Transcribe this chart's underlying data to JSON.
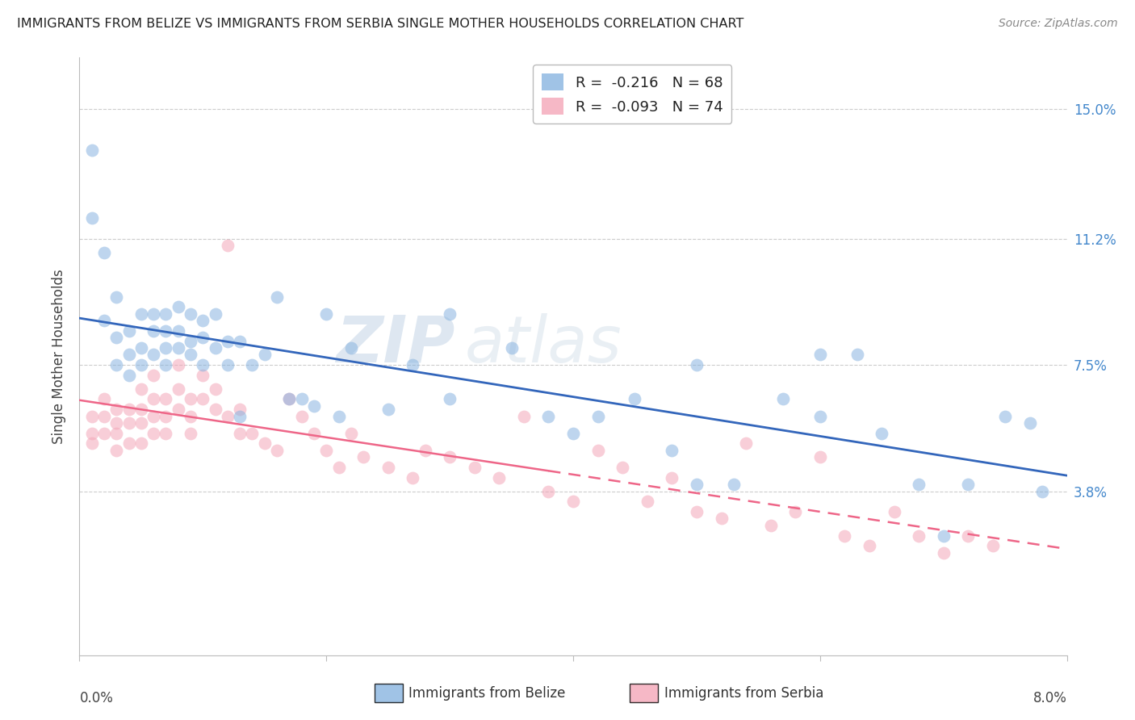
{
  "title": "IMMIGRANTS FROM BELIZE VS IMMIGRANTS FROM SERBIA SINGLE MOTHER HOUSEHOLDS CORRELATION CHART",
  "source": "Source: ZipAtlas.com",
  "ylabel": "Single Mother Households",
  "yticks": [
    "3.8%",
    "7.5%",
    "11.2%",
    "15.0%"
  ],
  "ytick_vals": [
    0.038,
    0.075,
    0.112,
    0.15
  ],
  "xlim": [
    0.0,
    0.08
  ],
  "ylim": [
    -0.01,
    0.165
  ],
  "legend_belize": "R =  -0.216   N = 68",
  "legend_serbia": "R =  -0.093   N = 74",
  "belize_color": "#89b4e0",
  "serbia_color": "#f4a6b8",
  "belize_line_color": "#3366BB",
  "serbia_line_color": "#EE6688",
  "watermark_zip": "ZIP",
  "watermark_atlas": "atlas",
  "belize_x": [
    0.001,
    0.001,
    0.002,
    0.002,
    0.003,
    0.003,
    0.003,
    0.004,
    0.004,
    0.004,
    0.005,
    0.005,
    0.005,
    0.006,
    0.006,
    0.006,
    0.007,
    0.007,
    0.007,
    0.007,
    0.008,
    0.008,
    0.008,
    0.009,
    0.009,
    0.009,
    0.01,
    0.01,
    0.01,
    0.011,
    0.011,
    0.012,
    0.012,
    0.013,
    0.013,
    0.014,
    0.015,
    0.016,
    0.017,
    0.018,
    0.019,
    0.02,
    0.021,
    0.022,
    0.025,
    0.027,
    0.03,
    0.035,
    0.038,
    0.04,
    0.042,
    0.048,
    0.05,
    0.053,
    0.057,
    0.06,
    0.063,
    0.065,
    0.068,
    0.07,
    0.072,
    0.075,
    0.077,
    0.078,
    0.03,
    0.045,
    0.05,
    0.06
  ],
  "belize_y": [
    0.138,
    0.118,
    0.108,
    0.088,
    0.095,
    0.083,
    0.075,
    0.085,
    0.078,
    0.072,
    0.09,
    0.08,
    0.075,
    0.09,
    0.085,
    0.078,
    0.09,
    0.085,
    0.08,
    0.075,
    0.092,
    0.085,
    0.08,
    0.09,
    0.082,
    0.078,
    0.088,
    0.083,
    0.075,
    0.09,
    0.08,
    0.082,
    0.075,
    0.082,
    0.06,
    0.075,
    0.078,
    0.095,
    0.065,
    0.065,
    0.063,
    0.09,
    0.06,
    0.08,
    0.062,
    0.075,
    0.065,
    0.08,
    0.06,
    0.055,
    0.06,
    0.05,
    0.04,
    0.04,
    0.065,
    0.06,
    0.078,
    0.055,
    0.04,
    0.025,
    0.04,
    0.06,
    0.058,
    0.038,
    0.09,
    0.065,
    0.075,
    0.078
  ],
  "serbia_x": [
    0.001,
    0.001,
    0.001,
    0.002,
    0.002,
    0.002,
    0.003,
    0.003,
    0.003,
    0.003,
    0.004,
    0.004,
    0.004,
    0.005,
    0.005,
    0.005,
    0.005,
    0.006,
    0.006,
    0.006,
    0.006,
    0.007,
    0.007,
    0.007,
    0.008,
    0.008,
    0.008,
    0.009,
    0.009,
    0.009,
    0.01,
    0.01,
    0.011,
    0.011,
    0.012,
    0.012,
    0.013,
    0.013,
    0.014,
    0.015,
    0.016,
    0.017,
    0.018,
    0.019,
    0.02,
    0.021,
    0.022,
    0.023,
    0.025,
    0.027,
    0.028,
    0.03,
    0.032,
    0.034,
    0.036,
    0.038,
    0.04,
    0.042,
    0.044,
    0.046,
    0.048,
    0.05,
    0.052,
    0.054,
    0.056,
    0.058,
    0.06,
    0.062,
    0.064,
    0.066,
    0.068,
    0.07,
    0.072,
    0.074
  ],
  "serbia_y": [
    0.06,
    0.055,
    0.052,
    0.065,
    0.06,
    0.055,
    0.062,
    0.058,
    0.055,
    0.05,
    0.062,
    0.058,
    0.052,
    0.068,
    0.062,
    0.058,
    0.052,
    0.072,
    0.065,
    0.06,
    0.055,
    0.065,
    0.06,
    0.055,
    0.075,
    0.068,
    0.062,
    0.065,
    0.06,
    0.055,
    0.072,
    0.065,
    0.068,
    0.062,
    0.11,
    0.06,
    0.062,
    0.055,
    0.055,
    0.052,
    0.05,
    0.065,
    0.06,
    0.055,
    0.05,
    0.045,
    0.055,
    0.048,
    0.045,
    0.042,
    0.05,
    0.048,
    0.045,
    0.042,
    0.06,
    0.038,
    0.035,
    0.05,
    0.045,
    0.035,
    0.042,
    0.032,
    0.03,
    0.052,
    0.028,
    0.032,
    0.048,
    0.025,
    0.022,
    0.032,
    0.025,
    0.02,
    0.025,
    0.022
  ]
}
